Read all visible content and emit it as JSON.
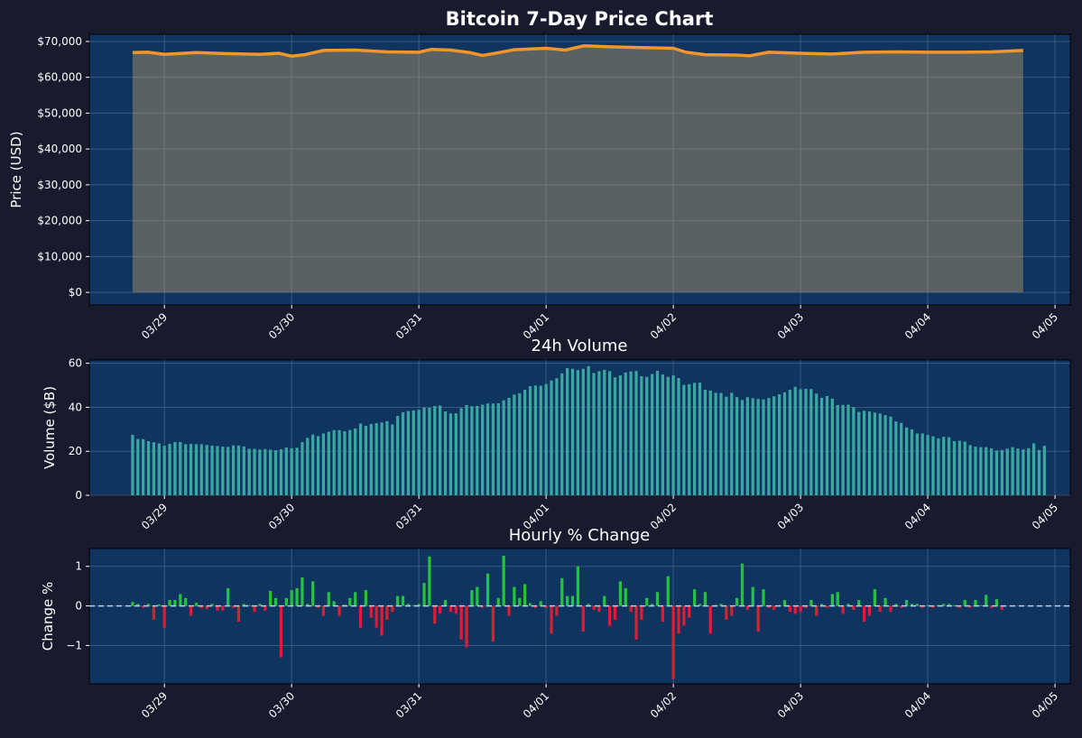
{
  "figure": {
    "background": "#1a1a2e",
    "panel_color": "#0f3460",
    "grid_color": "#5a7090",
    "text_color": "#ffffff"
  },
  "date_ticks": [
    "03/29",
    "03/30",
    "03/31",
    "04/01",
    "04/02",
    "04/03",
    "04/04",
    "04/05"
  ],
  "chart_data": [
    {
      "type": "area",
      "title": "Bitcoin 7-Day Price Chart",
      "xlabel": "",
      "ylabel": "Price (USD)",
      "ylim": [
        -3500,
        72000
      ],
      "xlim": [
        -0.59,
        7.12
      ],
      "yticks": [
        0,
        10000,
        20000,
        30000,
        40000,
        50000,
        60000,
        70000
      ],
      "ytick_labels": [
        "$0",
        "$10,000",
        "$20,000",
        "$30,000",
        "$40,000",
        "$50,000",
        "$60,000",
        "$70,000"
      ],
      "grid": true,
      "line_color": "#f0962c",
      "fill_color": "#c8a46a",
      "series": [
        {
          "name": "Price",
          "x": [
            -0.25,
            -0.13,
            0,
            0.25,
            0.5,
            0.75,
            0.9,
            1.0,
            1.1,
            1.25,
            1.5,
            1.75,
            2.0,
            2.1,
            2.25,
            2.4,
            2.5,
            2.6,
            2.75,
            3.0,
            3.15,
            3.3,
            3.5,
            3.75,
            4.0,
            4.1,
            4.25,
            4.5,
            4.6,
            4.75,
            5.0,
            5.25,
            5.5,
            5.75,
            6.0,
            6.25,
            6.5,
            6.75
          ],
          "values": [
            66900,
            67000,
            66400,
            66900,
            66600,
            66400,
            66700,
            65900,
            66300,
            67500,
            67600,
            67100,
            67000,
            67800,
            67600,
            66900,
            66100,
            66700,
            67700,
            68100,
            67600,
            68800,
            68500,
            68300,
            68100,
            67000,
            66300,
            66200,
            66000,
            67000,
            66700,
            66500,
            67000,
            67100,
            67000,
            67000,
            67100,
            67500
          ]
        }
      ]
    },
    {
      "type": "bar",
      "title": "24h Volume",
      "xlabel": "",
      "ylabel": "Volume ($B)",
      "ylim": [
        0,
        61.5
      ],
      "xlim": [
        -0.59,
        7.12
      ],
      "yticks": [
        0,
        20,
        40,
        60
      ],
      "ytick_labels": [
        "0",
        "20",
        "40",
        "60"
      ],
      "grid": true,
      "bar_color": "#3aa8a0",
      "bar_interval_days": 0.041667,
      "x_start": -0.25,
      "series": [
        {
          "name": "24h Volume ($B)",
          "values": [
            27.5,
            25.6,
            25.5,
            24.6,
            24.1,
            23.6,
            22.5,
            23.4,
            24.2,
            24.2,
            23.2,
            23.4,
            23.2,
            23.2,
            22.9,
            22.6,
            22.4,
            22.1,
            22.0,
            22.7,
            22.6,
            22.2,
            21.1,
            21.1,
            20.8,
            21.0,
            20.7,
            20.5,
            20.9,
            21.7,
            21.4,
            21.6,
            24.2,
            26.1,
            27.6,
            26.9,
            28.1,
            28.9,
            29.6,
            29.6,
            29.1,
            29.7,
            30.4,
            32.6,
            31.6,
            32.4,
            32.8,
            33.1,
            33.7,
            32.2,
            36.1,
            37.7,
            38.3,
            38.6,
            38.8,
            39.9,
            39.8,
            40.6,
            40.8,
            38.1,
            37.2,
            37.3,
            39.6,
            41.0,
            40.5,
            40.6,
            41.2,
            41.7,
            41.7,
            41.8,
            43.2,
            44.3,
            45.8,
            46.4,
            48.0,
            49.6,
            49.9,
            49.8,
            50.6,
            52.2,
            53.2,
            55.4,
            57.8,
            57.5,
            56.9,
            57.5,
            58.7,
            55.6,
            56.4,
            57.0,
            56.4,
            53.6,
            54.5,
            55.8,
            56.3,
            56.5,
            54.1,
            53.8,
            55.1,
            56.6,
            54.9,
            53.8,
            54.5,
            53.3,
            50.2,
            50.5,
            51.1,
            51.2,
            48.0,
            47.6,
            46.6,
            46.5,
            44.8,
            46.6,
            44.6,
            43.3,
            44.6,
            44.1,
            43.8,
            43.6,
            44.2,
            45.0,
            45.9,
            46.8,
            48.0,
            49.3,
            48.2,
            48.4,
            48.3,
            46.2,
            44.3,
            45.1,
            43.9,
            41.0,
            41.1,
            41.2,
            40.0,
            37.9,
            38.4,
            38.1,
            37.6,
            37.2,
            36.4,
            35.8,
            33.6,
            32.9,
            30.8,
            30.0,
            28.1,
            28.1,
            27.4,
            26.8,
            25.9,
            26.6,
            26.4,
            24.6,
            24.8,
            24.4,
            22.8,
            22.1,
            21.9,
            21.9,
            21.3,
            20.4,
            20.6,
            21.2,
            21.9,
            21.2,
            20.9,
            21.4,
            23.6,
            20.6,
            22.5
          ]
        }
      ]
    },
    {
      "type": "bar",
      "title": "Hourly % Change",
      "xlabel": "",
      "ylabel": "Change %",
      "ylim": [
        -1.97,
        1.45
      ],
      "xlim": [
        -0.59,
        7.12
      ],
      "yticks": [
        -1,
        0,
        1
      ],
      "ytick_labels": [
        "−1",
        "0",
        "1"
      ],
      "grid": true,
      "zero_line_color": "#c8c8d8",
      "positive_color": "#22c43c",
      "negative_color": "#dc1e32",
      "bar_interval_days": 0.041667,
      "x_start": -0.25,
      "series": [
        {
          "name": "Hourly % Change",
          "values": [
            0.1,
            0.05,
            -0.05,
            0.05,
            -0.35,
            0.04,
            -0.55,
            0.15,
            0.15,
            0.3,
            0.2,
            -0.25,
            0.08,
            -0.06,
            -0.08,
            0.05,
            -0.12,
            -0.12,
            0.45,
            -0.05,
            -0.4,
            0.05,
            0.02,
            -0.15,
            0.05,
            -0.12,
            0.38,
            0.2,
            -1.3,
            0.2,
            0.4,
            0.45,
            0.72,
            0.05,
            0.62,
            -0.05,
            -0.25,
            0.35,
            0.12,
            -0.25,
            0.03,
            0.2,
            0.35,
            -0.55,
            0.4,
            -0.3,
            -0.55,
            -0.75,
            -0.35,
            -0.15,
            0.25,
            0.25,
            0.05,
            0.02,
            0.05,
            0.58,
            1.25,
            -0.45,
            -0.2,
            0.15,
            -0.15,
            -0.2,
            -0.85,
            -1.05,
            0.4,
            0.48,
            -0.05,
            0.82,
            -0.9,
            0.2,
            1.27,
            -0.25,
            0.48,
            0.2,
            0.55,
            0.07,
            -0.05,
            0.12,
            -0.05,
            -0.7,
            -0.25,
            0.7,
            0.25,
            0.25,
            1.0,
            -0.65,
            0.05,
            -0.1,
            -0.15,
            0.25,
            -0.5,
            -0.35,
            0.62,
            0.45,
            -0.15,
            -0.85,
            -0.35,
            0.2,
            0.05,
            0.35,
            -0.4,
            0.75,
            -1.85,
            -0.7,
            -0.5,
            -0.3,
            0.42,
            0.05,
            0.35,
            -0.7,
            0.02,
            0.05,
            -0.35,
            -0.25,
            0.2,
            1.07,
            -0.1,
            0.48,
            -0.65,
            0.42,
            -0.05,
            -0.1,
            0.02,
            0.15,
            -0.15,
            -0.2,
            -0.15,
            -0.05,
            0.15,
            -0.25,
            0.05,
            -0.05,
            0.3,
            0.35,
            -0.2,
            0.05,
            -0.1,
            0.15,
            -0.4,
            -0.25,
            0.42,
            -0.15,
            0.2,
            -0.15,
            0.05,
            -0.05,
            0.15,
            0.05,
            0.05,
            -0.05,
            0.02,
            -0.05,
            0.02,
            0.05,
            0.05,
            0.02,
            -0.05,
            0.15,
            -0.05,
            0.15,
            0.02,
            0.28,
            -0.05,
            0.17,
            -0.1
          ]
        }
      ]
    }
  ]
}
